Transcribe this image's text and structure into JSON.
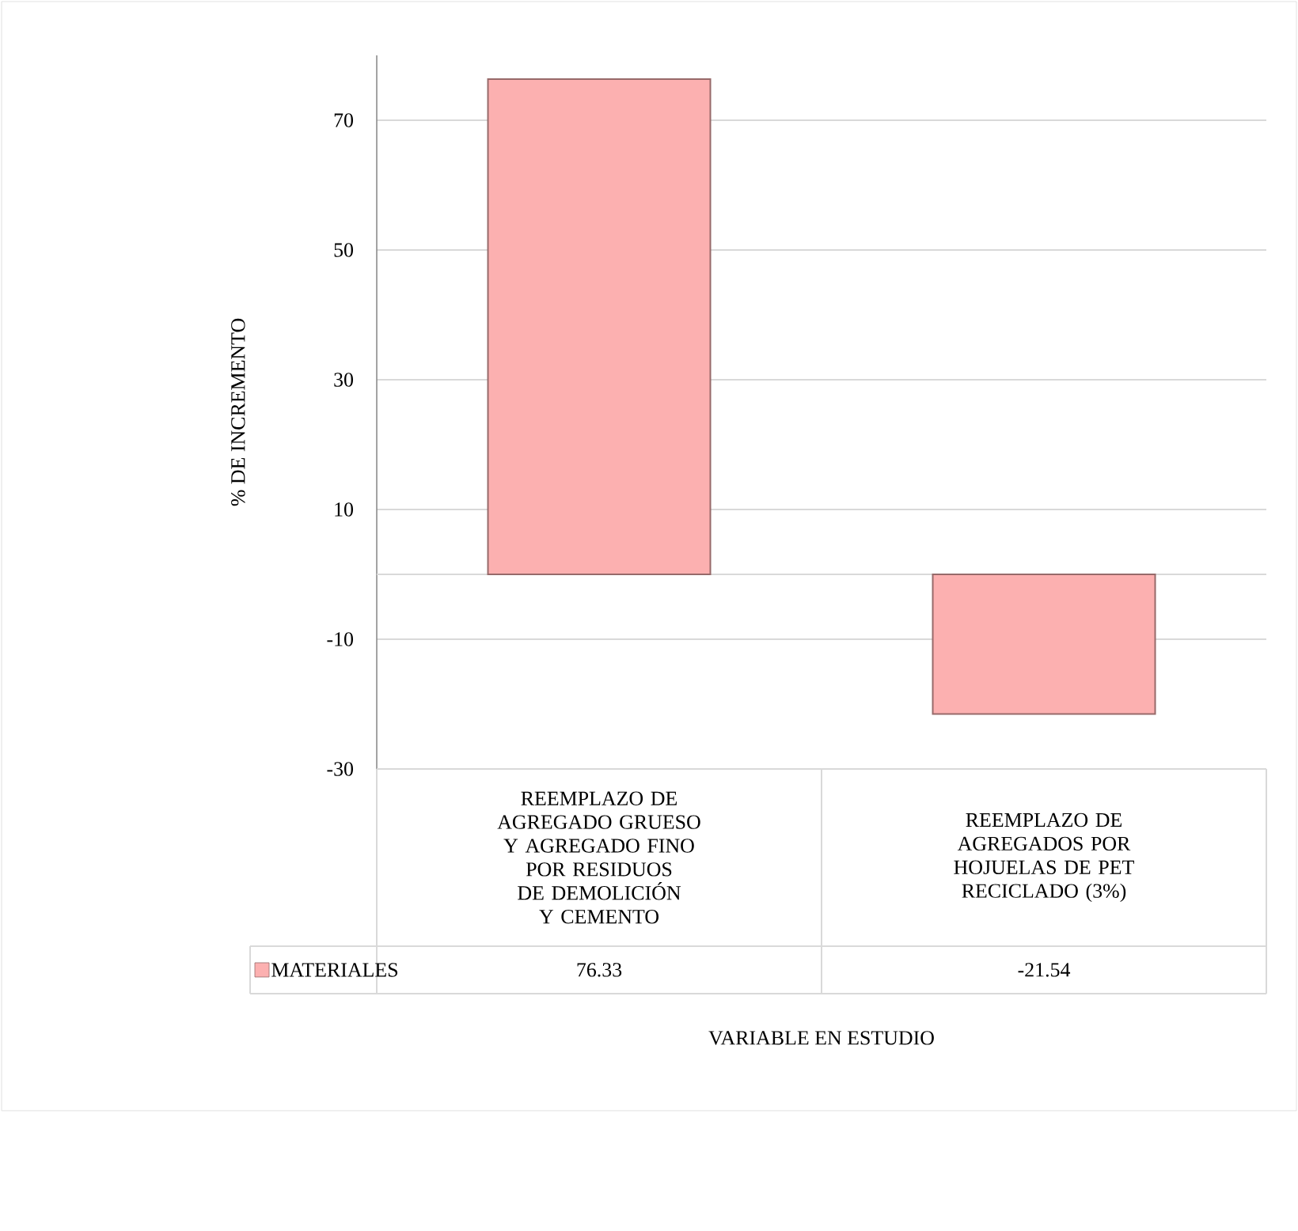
{
  "chart_data": {
    "type": "bar",
    "categories": [
      "REEMPLAZO DE AGREGADO GRUESO Y AGREGADO FINO POR RESIDUOS DE DEMOLICIÓN Y CEMENTO",
      "REEMPLAZO DE AGREGADOS POR HOJUELAS DE PET RECICLADO (3%)"
    ],
    "series": [
      {
        "name": "MATERIALES",
        "color": "#fcb0b0",
        "values": [
          76.33,
          -21.54
        ]
      }
    ],
    "ylim": [
      -30,
      80
    ],
    "yticks": [
      -30,
      -10,
      10,
      30,
      50,
      70
    ],
    "ylabel": "% DE INCREMENTO",
    "annotations": [
      "VARIABLE EN ESTUDIO"
    ],
    "grid": "y",
    "data_labels": true,
    "legend": "bottom left"
  }
}
